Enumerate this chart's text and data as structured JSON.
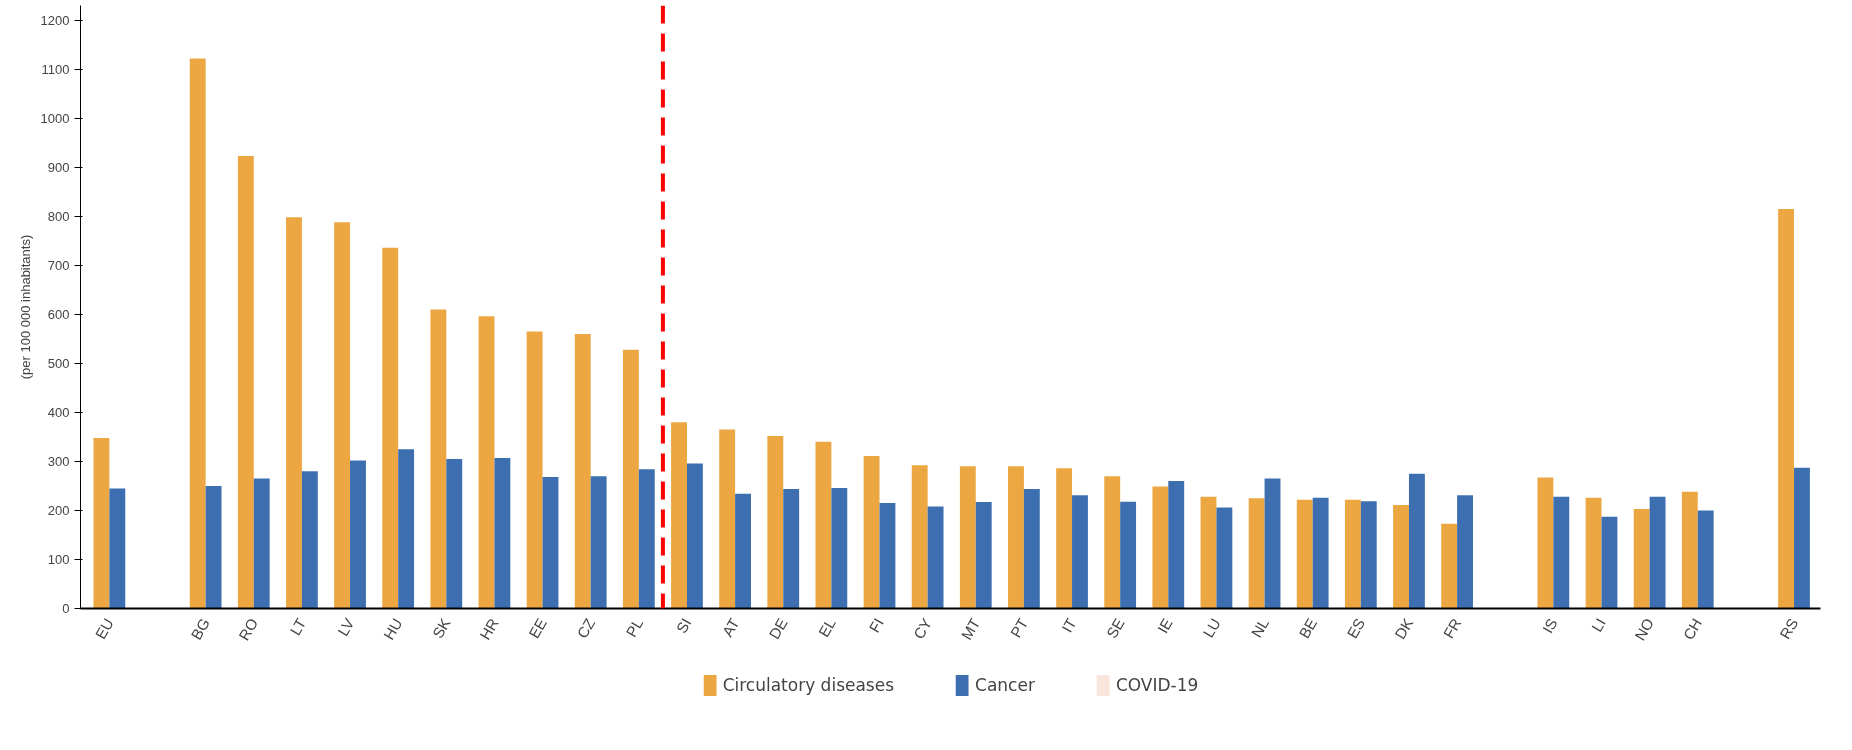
{
  "chart_data": {
    "type": "bar",
    "ylabel": "(per 100 000 inhabitants)",
    "categories": [
      "EU",
      null,
      "BG",
      "RO",
      "LT",
      "LV",
      "HU",
      "SK",
      "HR",
      "EE",
      "CZ",
      "PL",
      "SI",
      "AT",
      "DE",
      "EL",
      "FI",
      "CY",
      "MT",
      "PT",
      "IT",
      "SE",
      "IE",
      "LU",
      "NL",
      "BE",
      "ES",
      "DK",
      "FR",
      null,
      "IS",
      "LI",
      "NO",
      "CH",
      null,
      "RS"
    ],
    "series": [
      {
        "name": "Circulatory diseases",
        "color": "#eca742",
        "values": [
          348,
          null,
          1122,
          923,
          798,
          788,
          736,
          610,
          596,
          565,
          560,
          528,
          380,
          365,
          352,
          340,
          311,
          292,
          290,
          290,
          286,
          270,
          249,
          228,
          225,
          222,
          222,
          211,
          173,
          null,
          267,
          226,
          203,
          238,
          null,
          815
        ]
      },
      {
        "name": "Cancer",
        "color": "#3d6fb0",
        "values": [
          245,
          null,
          250,
          265,
          280,
          302,
          325,
          305,
          307,
          268,
          270,
          284,
          296,
          234,
          244,
          246,
          215,
          208,
          217,
          244,
          231,
          218,
          260,
          206,
          265,
          226,
          219,
          275,
          231,
          null,
          228,
          187,
          228,
          200,
          null,
          287
        ]
      },
      {
        "name": "COVID-19",
        "color": "#f9e5dc",
        "values": [
          null,
          null,
          null,
          null,
          null,
          null,
          null,
          null,
          null,
          null,
          null,
          null,
          null,
          null,
          null,
          null,
          null,
          null,
          null,
          null,
          null,
          null,
          null,
          null,
          null,
          null,
          null,
          null,
          null,
          null,
          null,
          null,
          null,
          null,
          null,
          null
        ]
      }
    ],
    "ylim": [
      0,
      1230
    ],
    "yticks": [
      0,
      100,
      200,
      300,
      400,
      500,
      600,
      700,
      800,
      900,
      1000,
      1100,
      1200
    ],
    "grid": false,
    "legend": "bottom",
    "ref_lines": [
      {
        "axis": "x",
        "value": "SI",
        "color": "#ff0000",
        "line_style": "dashed"
      }
    ]
  }
}
